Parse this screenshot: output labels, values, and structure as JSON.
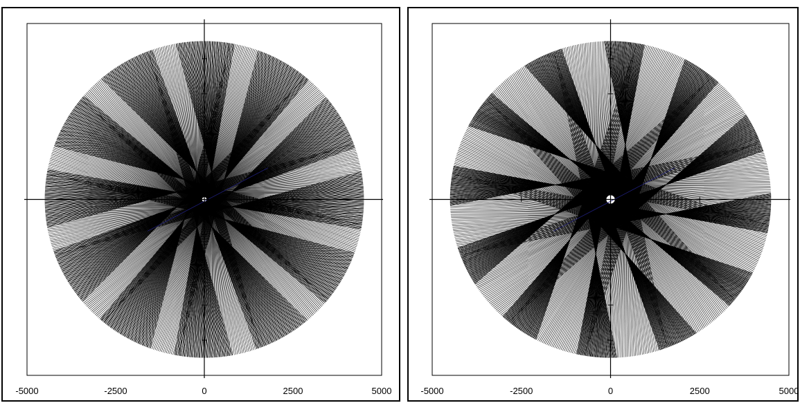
{
  "chart_data": [
    {
      "type": "line",
      "title": "",
      "xlabel": "",
      "ylabel": "",
      "xlim": [
        -5000,
        5000
      ],
      "ylim": [
        -5000,
        5000
      ],
      "x_ticks": [
        "-5000",
        "-2500",
        "0",
        "2500",
        "5000"
      ],
      "grid": false,
      "axes_through_origin": true,
      "line_color": "#000000",
      "accent_color": "#1f1f7a",
      "curve": {
        "kind": "star chord pattern (Farey-like string art)",
        "radius": 4500,
        "points": 600,
        "step_fraction": 0.4,
        "star_points": 12,
        "inner_radius": 800
      }
    },
    {
      "type": "line",
      "title": "",
      "xlabel": "",
      "ylabel": "",
      "xlim": [
        -5000,
        5000
      ],
      "ylim": [
        -5000,
        5000
      ],
      "x_ticks": [
        "-5000",
        "-2500",
        "0",
        "2500",
        "5000"
      ],
      "grid": false,
      "axes_through_origin": true,
      "line_color": "#000000",
      "accent_color": "#1f1f7a",
      "curve": {
        "kind": "star chord pattern (Farey-like string art)",
        "radius": 4500,
        "points": 600,
        "step_fraction": 0.4,
        "star_points": 12,
        "inner_radius": 1600
      }
    }
  ]
}
